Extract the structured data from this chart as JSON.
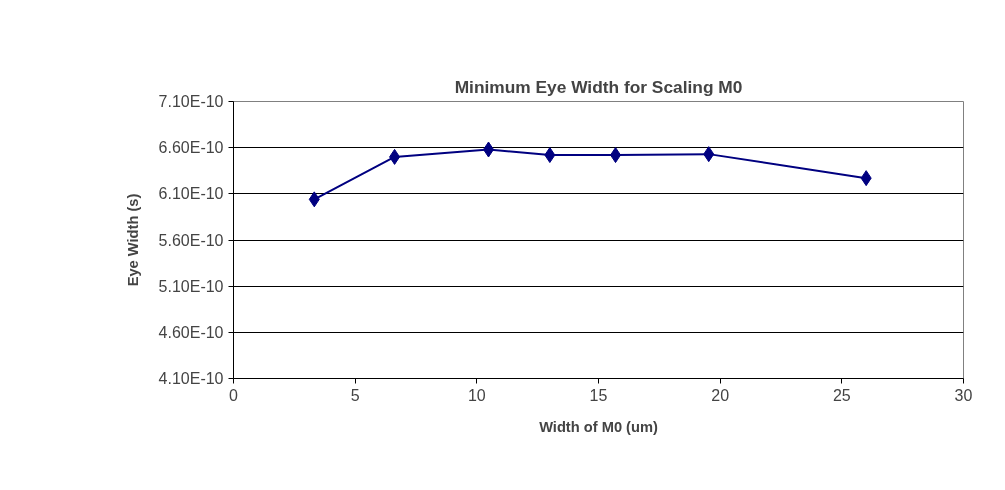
{
  "chart_data": {
    "type": "line",
    "title": "Minimum Eye Width for Scaling M0",
    "xlabel": "Width of M0 (um)",
    "ylabel": "Eye Width (s)",
    "x": [
      3.32,
      6.62,
      10.48,
      13.0,
      15.7,
      19.53,
      26.0
    ],
    "series": [
      {
        "color": "#000080",
        "values": [
          6.04e-10,
          6.5e-10,
          6.58e-10,
          6.52e-10,
          6.52e-10,
          6.53e-10,
          6.27e-10
        ]
      }
    ],
    "xlim": [
      0,
      30
    ],
    "xticks": [
      0,
      5,
      10,
      15,
      20,
      25,
      30
    ],
    "ylim": [
      4.1e-10,
      7.1e-10
    ],
    "yticks": [
      {
        "value": 4.1e-10,
        "label": "4.10E-10"
      },
      {
        "value": 4.6e-10,
        "label": "4.60E-10"
      },
      {
        "value": 5.1e-10,
        "label": "5.10E-10"
      },
      {
        "value": 5.6e-10,
        "label": "5.60E-10"
      },
      {
        "value": 6.1e-10,
        "label": "6.10E-10"
      },
      {
        "value": 6.6e-10,
        "label": "6.60E-10"
      },
      {
        "value": 7.1e-10,
        "label": "7.10E-10"
      }
    ],
    "grid": "y",
    "marker": "diamond",
    "line_style": "solid"
  }
}
